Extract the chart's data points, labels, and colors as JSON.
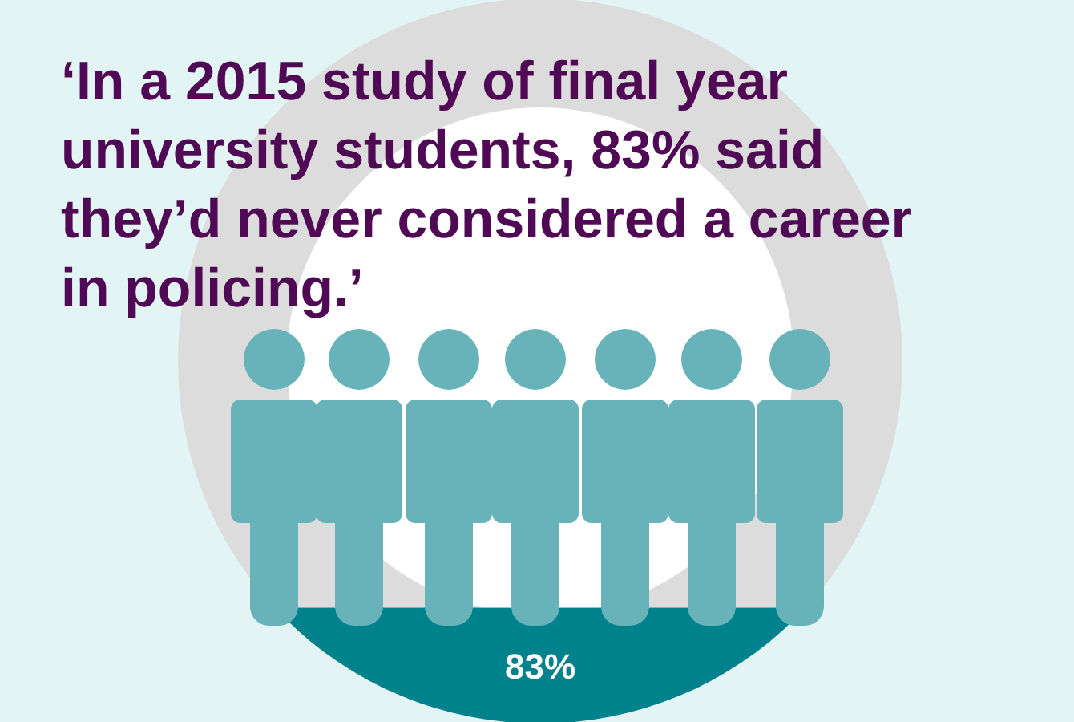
{
  "chart_data": {
    "type": "other",
    "title": "‘In a 2015 study of final year university students, 83% said they’d never considered a career in policing.’",
    "categories": [
      null
    ],
    "values": [
      83
    ],
    "value_labels": [
      "83%"
    ],
    "color": "#00828c"
  }
}
